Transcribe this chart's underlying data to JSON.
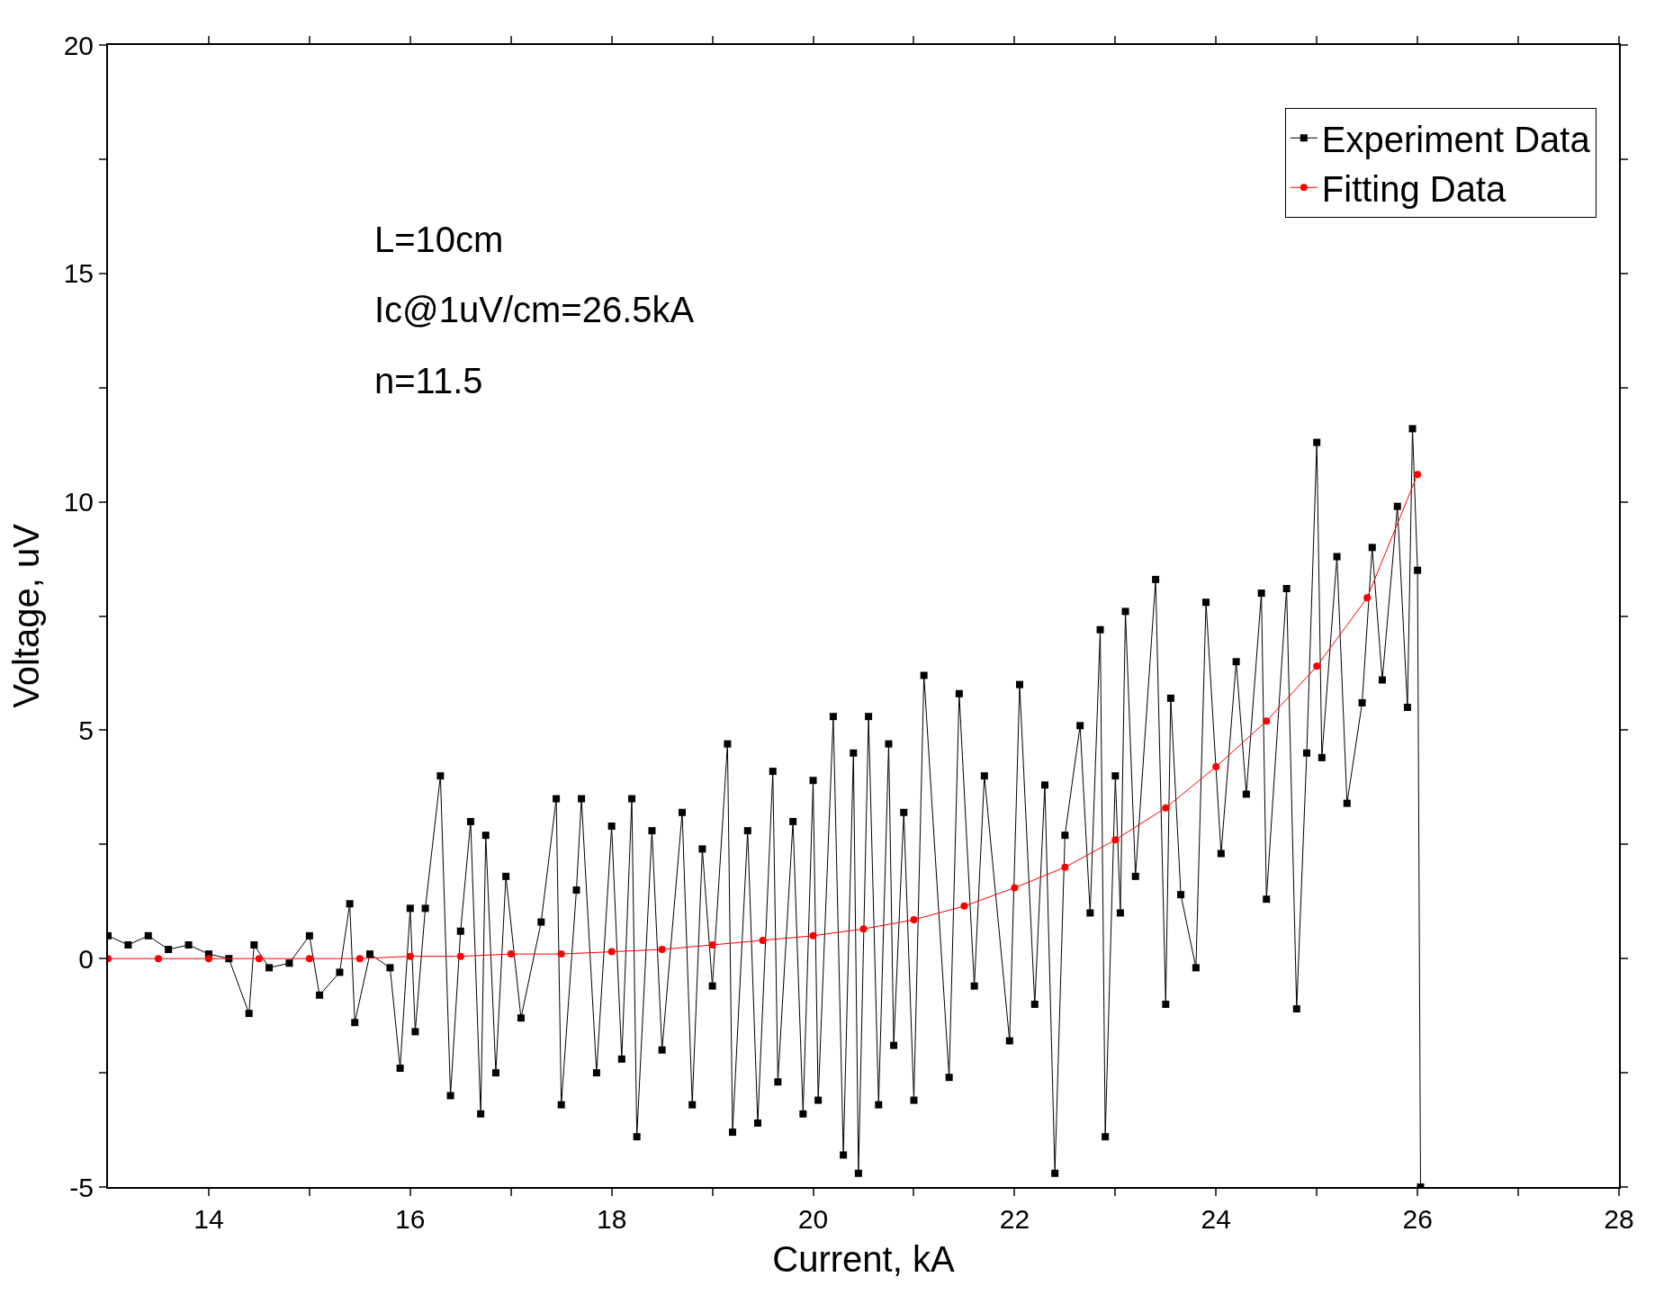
{
  "chart_data": {
    "type": "line",
    "xlabel": "Current, kA",
    "ylabel": "Voltage, uV",
    "annotations": [
      "L=10cm",
      "Ic@1uV/cm=26.5kA",
      "n=11.5"
    ],
    "xlim": [
      13,
      28
    ],
    "ylim": [
      -5,
      20
    ],
    "xticks": [
      14,
      {
        "value": 15,
        "label": null
      },
      16,
      {
        "value": 17,
        "label": null
      },
      18,
      {
        "value": 19,
        "label": null
      },
      20,
      {
        "value": 21,
        "label": null
      },
      22,
      {
        "value": 23,
        "label": null
      },
      24,
      {
        "value": 25,
        "label": null
      },
      26,
      {
        "value": 27,
        "label": null
      },
      28
    ],
    "yticks": [
      -5,
      {
        "value": -2.5,
        "label": null
      },
      0,
      {
        "value": 2.5,
        "label": null
      },
      5,
      {
        "value": 7.5,
        "label": null
      },
      10,
      {
        "value": 12.5,
        "label": null
      },
      15,
      {
        "value": 17.5,
        "label": null
      },
      20
    ],
    "legend": "top right",
    "line_style": "solid",
    "series": [
      {
        "name": "Experiment Data",
        "color": "#000000",
        "marker": "square",
        "x": [
          13.0,
          13.2,
          13.4,
          13.6,
          13.8,
          14.0,
          14.2,
          14.4,
          14.45,
          14.6,
          14.8,
          15.0,
          15.1,
          15.3,
          15.4,
          15.45,
          15.6,
          15.8,
          15.9,
          16.0,
          16.05,
          16.15,
          16.3,
          16.4,
          16.5,
          16.6,
          16.7,
          16.75,
          16.85,
          16.95,
          17.1,
          17.3,
          17.45,
          17.5,
          17.65,
          17.7,
          17.85,
          18.0,
          18.1,
          18.2,
          18.25,
          18.4,
          18.5,
          18.7,
          18.8,
          18.9,
          19.0,
          19.15,
          19.2,
          19.35,
          19.45,
          19.6,
          19.65,
          19.8,
          19.9,
          20.0,
          20.05,
          20.2,
          20.3,
          20.4,
          20.45,
          20.55,
          20.65,
          20.75,
          20.8,
          20.9,
          21.0,
          21.1,
          21.35,
          21.45,
          21.6,
          21.7,
          21.95,
          22.05,
          22.2,
          22.3,
          22.4,
          22.5,
          22.65,
          22.75,
          22.85,
          22.9,
          23.0,
          23.05,
          23.1,
          23.2,
          23.4,
          23.5,
          23.55,
          23.65,
          23.8,
          23.9,
          24.05,
          24.2,
          24.3,
          24.45,
          24.5,
          24.7,
          24.8,
          24.9,
          25.0,
          25.05,
          25.2,
          25.3,
          25.45,
          25.55,
          25.65,
          25.8,
          25.9,
          25.95,
          26.0,
          26.03
        ],
        "values": [
          0.5,
          0.3,
          0.5,
          0.2,
          0.3,
          0.1,
          0.0,
          -1.2,
          0.3,
          -0.2,
          -0.1,
          0.5,
          -0.8,
          -0.3,
          1.2,
          -1.4,
          0.1,
          -0.2,
          -2.4,
          1.1,
          -1.6,
          1.1,
          4.0,
          -3.0,
          0.6,
          3.0,
          -3.4,
          2.7,
          -2.5,
          1.8,
          -1.3,
          0.8,
          3.5,
          -3.2,
          1.5,
          3.5,
          -2.5,
          2.9,
          -2.2,
          3.5,
          -3.9,
          2.8,
          -2.0,
          3.2,
          -3.2,
          2.4,
          -0.6,
          4.7,
          -3.8,
          2.8,
          -3.6,
          4.1,
          -2.7,
          3.0,
          -3.4,
          3.9,
          -3.1,
          5.3,
          -4.3,
          4.5,
          -4.7,
          5.3,
          -3.2,
          4.7,
          -1.9,
          3.2,
          -3.1,
          6.2,
          -2.6,
          5.8,
          -0.6,
          4.0,
          -1.8,
          6.0,
          -1.0,
          3.8,
          -4.7,
          2.7,
          5.1,
          1.0,
          7.2,
          -3.9,
          4.0,
          1.0,
          7.6,
          1.8,
          8.3,
          -1.0,
          5.7,
          1.4,
          -0.2,
          7.8,
          2.3,
          6.5,
          3.6,
          8.0,
          1.3,
          8.1,
          -1.1,
          4.5,
          11.3,
          4.4,
          8.8,
          3.4,
          5.6,
          9.0,
          6.1,
          9.9,
          5.5,
          11.6,
          8.5,
          -5.0
        ]
      },
      {
        "name": "Fitting Data",
        "color": "#ff0000",
        "marker": "circle",
        "x": [
          13,
          13.5,
          14,
          14.5,
          15,
          15.5,
          16,
          16.5,
          17,
          17.5,
          18,
          18.5,
          19,
          19.5,
          20,
          20.5,
          21,
          21.5,
          22,
          22.5,
          23,
          23.5,
          24,
          24.5,
          25,
          25.5,
          26
        ],
        "values": [
          0,
          0,
          0,
          0,
          0,
          0,
          0.05,
          0.05,
          0.1,
          0.1,
          0.15,
          0.2,
          0.3,
          0.4,
          0.5,
          0.65,
          0.85,
          1.15,
          1.55,
          2.0,
          2.6,
          3.3,
          4.2,
          5.2,
          6.4,
          7.9,
          10.6
        ]
      }
    ]
  }
}
